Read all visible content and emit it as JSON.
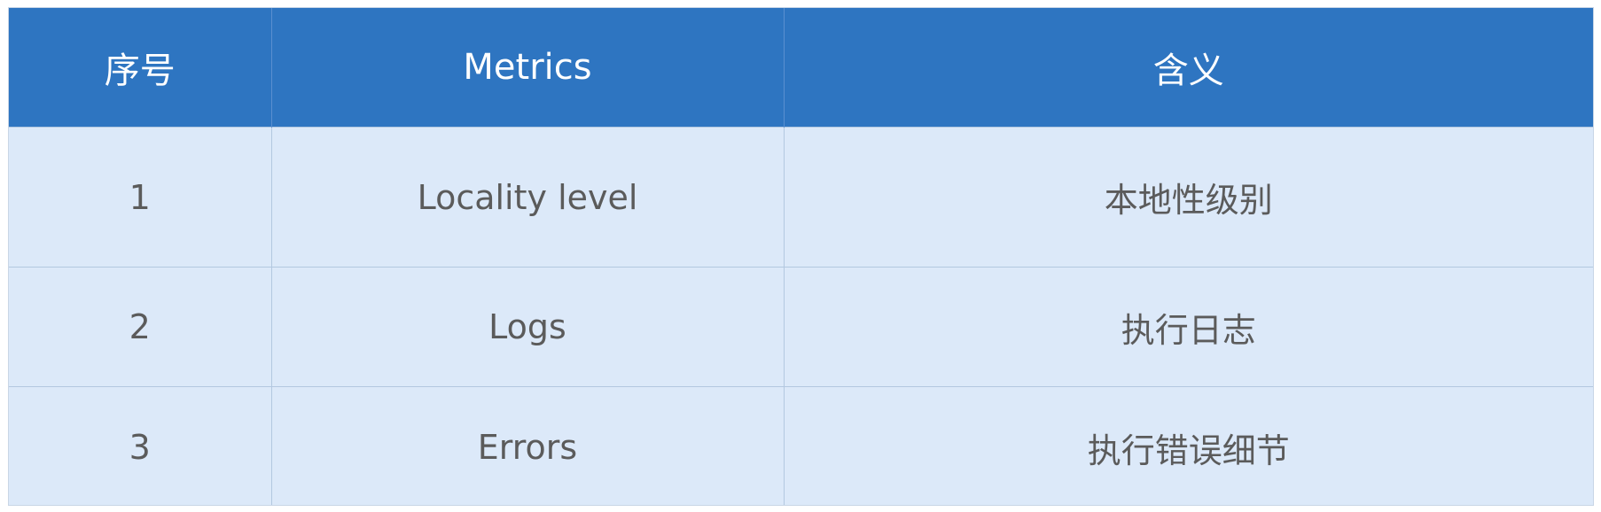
{
  "table": {
    "headers": [
      "序号",
      "Metrics",
      "含义"
    ],
    "rows": [
      [
        "1",
        "Locality level",
        "本地性级别"
      ],
      [
        "2",
        "Logs",
        "执行日志"
      ],
      [
        "3",
        "Errors",
        "执行错误细节"
      ]
    ]
  },
  "colors": {
    "header_bg": "#2e75c1",
    "header_text": "#ffffff",
    "row_bg": "#dce9f9",
    "cell_text": "#5b5b5b"
  }
}
